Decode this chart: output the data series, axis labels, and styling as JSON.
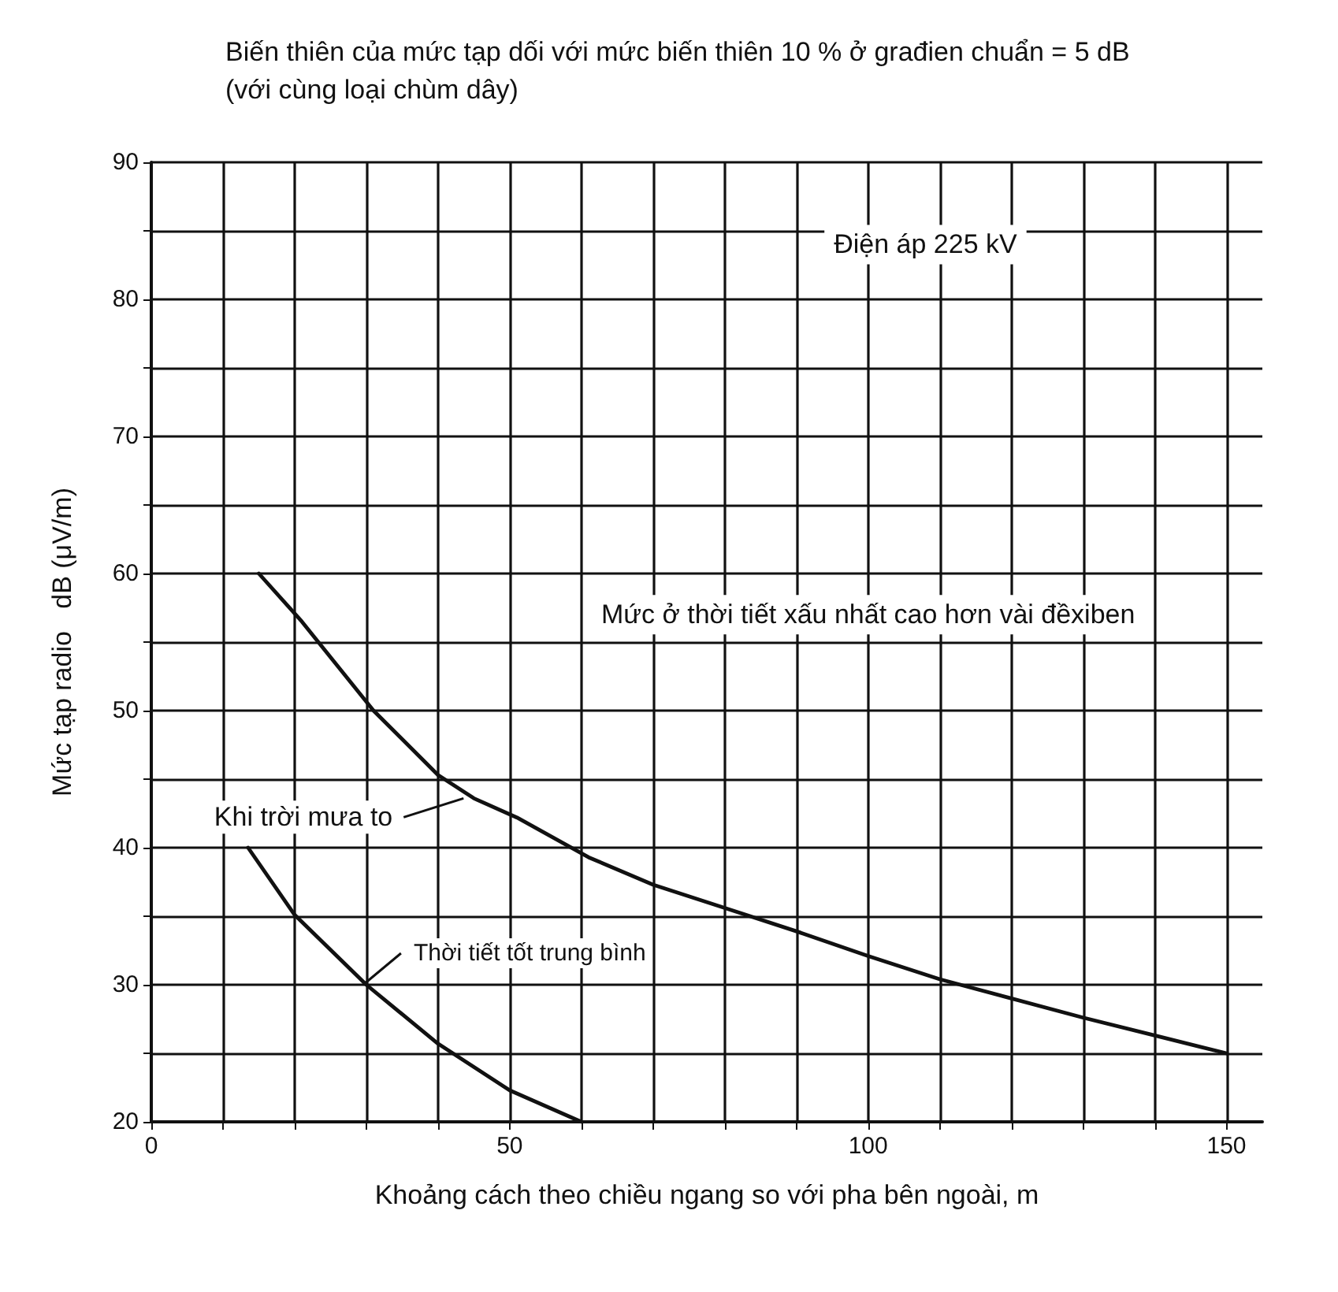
{
  "chart_data": {
    "type": "line",
    "title": "Biến thiên của mức tạp dối với mức biến thiên 10 % ở građien chuẩn = 5 dB (với cùng loại chùm dây)",
    "xlabel": "Khoảng cách theo chiều ngang so với pha bên ngoài, m",
    "ylabel": "Mức tạp radio   dB (μV/m)",
    "xlim": [
      0,
      155
    ],
    "ylim": [
      20,
      90
    ],
    "xticks": [
      0,
      {
        "value": 10,
        "label": null
      },
      {
        "value": 20,
        "label": null
      },
      {
        "value": 30,
        "label": null
      },
      {
        "value": 40,
        "label": null
      },
      50,
      {
        "value": 60,
        "label": null
      },
      {
        "value": 70,
        "label": null
      },
      {
        "value": 80,
        "label": null
      },
      {
        "value": 90,
        "label": null
      },
      100,
      {
        "value": 110,
        "label": null
      },
      {
        "value": 120,
        "label": null
      },
      {
        "value": 130,
        "label": null
      },
      {
        "value": 140,
        "label": null
      },
      150
    ],
    "yticks": [
      20,
      {
        "value": 25,
        "label": null
      },
      30,
      {
        "value": 35,
        "label": null
      },
      40,
      {
        "value": 45,
        "label": null
      },
      50,
      {
        "value": 55,
        "label": null
      },
      60,
      {
        "value": 65,
        "label": null
      },
      70,
      {
        "value": 75,
        "label": null
      },
      80,
      {
        "value": 85,
        "label": null
      },
      90
    ],
    "grid": true,
    "marker": "none",
    "line_style": "solid",
    "series": [
      {
        "color": "#111111",
        "x": [
          15,
          21,
          31,
          40,
          45,
          51,
          61,
          70,
          80,
          90,
          100,
          110,
          120,
          130,
          140,
          150
        ],
        "values": [
          60,
          56.5,
          50,
          45.3,
          43.6,
          42.2,
          39.3,
          37.3,
          35.6,
          33.9,
          32.1,
          30.4,
          29,
          27.6,
          26.3,
          25
        ]
      },
      {
        "color": "#111111",
        "x": [
          13.5,
          20,
          30,
          40,
          50,
          60
        ],
        "values": [
          40,
          35.1,
          30,
          25.7,
          22.3,
          20
        ]
      }
    ],
    "annotations": [
      "Điện áp 225 kV",
      "Mức ở thời tiết xấu nhất cao hơn vài đềxiben",
      {
        "text": "Khi trời mưa to",
        "x": 44,
        "y": 43.6
      },
      {
        "text": "Thời tiết tốt trung bình",
        "x": 30,
        "y": 30
      }
    ]
  }
}
